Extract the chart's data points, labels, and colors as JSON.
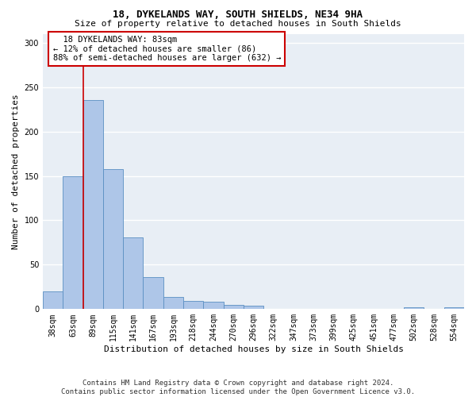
{
  "title": "18, DYKELANDS WAY, SOUTH SHIELDS, NE34 9HA",
  "subtitle": "Size of property relative to detached houses in South Shields",
  "xlabel": "Distribution of detached houses by size in South Shields",
  "ylabel": "Number of detached properties",
  "bar_labels": [
    "38sqm",
    "63sqm",
    "89sqm",
    "115sqm",
    "141sqm",
    "167sqm",
    "193sqm",
    "218sqm",
    "244sqm",
    "270sqm",
    "296sqm",
    "322sqm",
    "347sqm",
    "373sqm",
    "399sqm",
    "425sqm",
    "451sqm",
    "477sqm",
    "502sqm",
    "528sqm",
    "554sqm"
  ],
  "bar_values": [
    20,
    150,
    235,
    158,
    81,
    36,
    14,
    9,
    8,
    5,
    4,
    0,
    0,
    0,
    0,
    0,
    0,
    0,
    2,
    0,
    2
  ],
  "bar_color": "#aec6e8",
  "bar_edge_color": "#5a8fc2",
  "vline_x": 1.5,
  "vline_color": "#cc0000",
  "annotation_text": "  18 DYKELANDS WAY: 83sqm\n← 12% of detached houses are smaller (86)\n88% of semi-detached houses are larger (632) →",
  "annotation_box_color": "#ffffff",
  "annotation_box_edge_color": "#cc0000",
  "ylim": [
    0,
    310
  ],
  "yticks": [
    0,
    50,
    100,
    150,
    200,
    250,
    300
  ],
  "background_color": "#e8eef5",
  "grid_color": "#ffffff",
  "footer_line1": "Contains HM Land Registry data © Crown copyright and database right 2024.",
  "footer_line2": "Contains public sector information licensed under the Open Government Licence v3.0.",
  "title_fontsize": 9,
  "subtitle_fontsize": 8,
  "xlabel_fontsize": 8,
  "ylabel_fontsize": 8,
  "tick_fontsize": 7,
  "annotation_fontsize": 7.5,
  "footer_fontsize": 6.5
}
